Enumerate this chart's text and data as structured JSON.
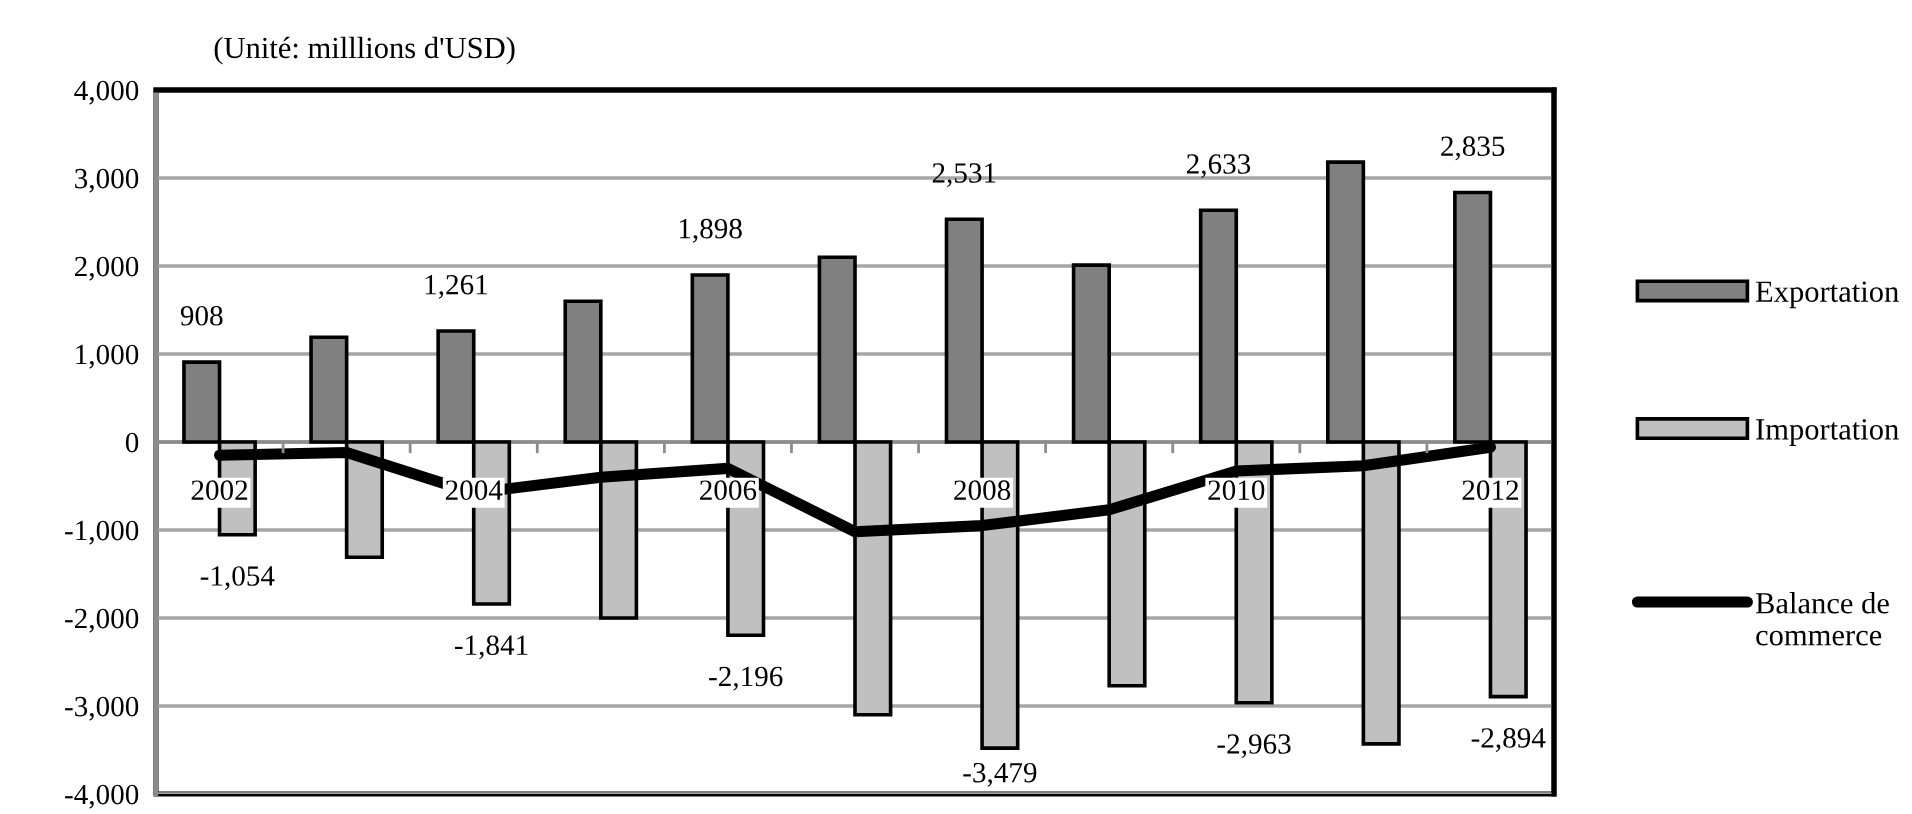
{
  "chart_data": {
    "type": "bar",
    "ylabel": "(Unité: milllions d'USD)",
    "categories": [
      "2002",
      null,
      "2004",
      null,
      "2006",
      null,
      "2008",
      null,
      "2010",
      null,
      "2012"
    ],
    "series": [
      {
        "name": "Exportation",
        "color": "#808080",
        "values": [
          908,
          1190,
          1261,
          1600,
          1898,
          2100,
          2531,
          2010,
          2633,
          3180,
          2835
        ],
        "value_labels": [
          "908",
          null,
          "1,261",
          null,
          "1,898",
          null,
          "2,531",
          null,
          "2,633",
          null,
          "2,835"
        ]
      },
      {
        "name": "Importation",
        "color": "#c0c0c0",
        "values": [
          -1054,
          -1310,
          -1841,
          -2000,
          -2196,
          -3100,
          -3479,
          -2770,
          -2963,
          -3430,
          -2894
        ],
        "value_labels": [
          "-1,054",
          null,
          "-1,841",
          null,
          "-2,196",
          null,
          "-3,479",
          null,
          "-2,963",
          null,
          "-2,894"
        ]
      },
      {
        "name": "Balance de commerce",
        "type": "line",
        "color": "#000000",
        "values": [
          -150,
          -120,
          -580,
          -400,
          -300,
          -1020,
          -950,
          -770,
          -330,
          -270,
          -60
        ]
      }
    ],
    "ylim": [
      -4000,
      4000
    ],
    "yticks": [
      {
        "value": -4000,
        "label": "-4,000"
      },
      {
        "value": -3000,
        "label": "-3,000"
      },
      {
        "value": -2000,
        "label": "-2,000"
      },
      {
        "value": -1000,
        "label": "-1,000"
      },
      0,
      {
        "value": 1000,
        "label": "1,000"
      },
      {
        "value": 2000,
        "label": "2,000"
      },
      {
        "value": 3000,
        "label": "3,000"
      },
      {
        "value": 4000,
        "label": "4,000"
      }
    ],
    "grid": "y",
    "legend": "right",
    "line_style": "solid"
  }
}
